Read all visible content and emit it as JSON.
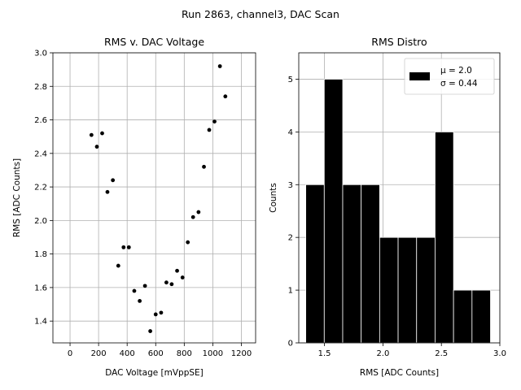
{
  "suptitle": "Run 2863, channel3, DAC Scan",
  "chart_data": [
    {
      "type": "scatter",
      "title": "RMS v. DAC Voltage",
      "xlabel": "DAC Voltage [mVppSE]",
      "ylabel": "RMS [ADC Counts]",
      "xlim": [
        -120,
        1300
      ],
      "ylim": [
        1.27,
        3.0
      ],
      "xticks": [
        0,
        200,
        400,
        600,
        800,
        1000,
        1200
      ],
      "xtick_labels": [
        "0",
        "200",
        "400",
        "600",
        "800",
        "1000",
        "1200"
      ],
      "yticks": [
        1.4,
        1.6,
        1.8,
        2.0,
        2.2,
        2.4,
        2.6,
        2.8,
        3.0
      ],
      "ytick_labels": [
        "1.4",
        "1.6",
        "1.8",
        "2.0",
        "2.2",
        "2.4",
        "2.6",
        "2.8",
        "3.0"
      ],
      "grid": true,
      "marker_color": "#000000",
      "x": [
        150,
        188,
        225,
        262,
        300,
        338,
        375,
        412,
        450,
        488,
        525,
        562,
        600,
        638,
        675,
        712,
        750,
        788,
        825,
        862,
        900,
        938,
        975,
        1012,
        1050,
        1088
      ],
      "y": [
        2.51,
        2.44,
        2.52,
        2.17,
        2.24,
        1.73,
        1.84,
        1.84,
        1.58,
        1.52,
        1.61,
        1.34,
        1.44,
        1.45,
        1.63,
        1.62,
        1.7,
        1.66,
        1.87,
        2.02,
        2.05,
        2.32,
        2.54,
        2.59,
        2.92,
        2.74
      ]
    },
    {
      "type": "bar",
      "title": "RMS Distro",
      "xlabel": "RMS [ADC Counts]",
      "ylabel": "Counts",
      "xlim": [
        1.28,
        3.0
      ],
      "ylim": [
        0,
        5.5
      ],
      "xticks": [
        1.5,
        2.0,
        2.5,
        3.0
      ],
      "xtick_labels": [
        "1.5",
        "2.0",
        "2.5",
        "3.0"
      ],
      "yticks": [
        0,
        1,
        2,
        3,
        4,
        5
      ],
      "ytick_labels": [
        "0",
        "1",
        "2",
        "3",
        "4",
        "5"
      ],
      "grid": true,
      "bar_color": "#000000",
      "bin_edges": [
        1.34,
        1.498,
        1.656,
        1.814,
        1.972,
        2.13,
        2.288,
        2.446,
        2.604,
        2.762,
        2.92
      ],
      "values": [
        3,
        5,
        3,
        3,
        2,
        2,
        2,
        4,
        1,
        1
      ],
      "legend": {
        "position": "top-right",
        "lines": [
          "μ = 2.0",
          "σ = 0.44"
        ],
        "swatch_color": "#000000"
      }
    }
  ]
}
